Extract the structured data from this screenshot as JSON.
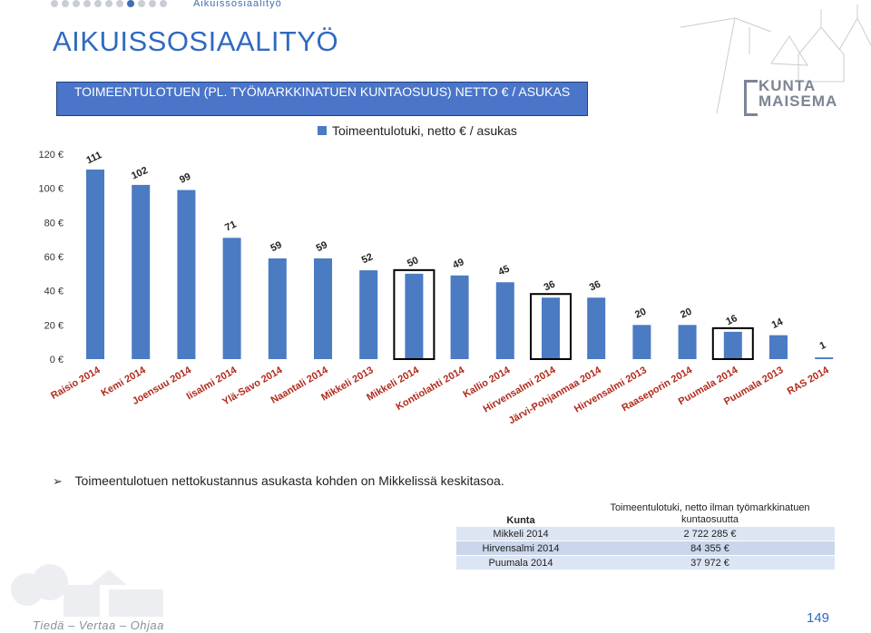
{
  "header": {
    "breadcrumb": "Aikuissosiaalityö",
    "nav_dots": [
      false,
      false,
      false,
      false,
      false,
      false,
      false,
      true,
      false,
      false,
      false
    ]
  },
  "page_title": "AIKUISSOSIAALITYÖ",
  "logo": {
    "line1": "KUNTA",
    "line2": "MAISEMA"
  },
  "chart_data": {
    "type": "bar",
    "title": "TOIMEENTULOTUEN (PL. TYÖMARKKINATUEN KUNTAOSUUS) NETTO € / ASUKAS",
    "legend_position": "top-right",
    "series": [
      {
        "name": "Toimeentulotuki, netto € / asukas",
        "color": "#4a7bc3",
        "values": [
          111,
          102,
          99,
          71,
          59,
          59,
          52,
          50,
          49,
          45,
          36,
          36,
          20,
          20,
          16,
          14,
          1
        ]
      }
    ],
    "categories": [
      "Raisio 2014",
      "Kemi 2014",
      "Joensuu 2014",
      "Iisalmi 2014",
      "Ylä-Savo 2014",
      "Naantali 2014",
      "Mikkeli 2013",
      "Mikkeli 2014",
      "Kontiolahti 2014",
      "Kallio 2014",
      "Hirvensalmi 2014",
      "Järvi-Pohjanmaa 2014",
      "Hirvensalmi 2013",
      "Raaseporin 2014",
      "Puumala 2014",
      "Puumala 2013",
      "RAS 2014"
    ],
    "highlighted": [
      "Mikkeli 2014",
      "Hirvensalmi 2014",
      "Puumala 2014"
    ],
    "yticks": [
      "0 €",
      "20 €",
      "40 €",
      "60 €",
      "80 €",
      "100 €",
      "120 €"
    ],
    "ylim": [
      0,
      120
    ],
    "grid": false
  },
  "bullet_text": "Toimeentulotuen nettokustannus asukasta kohden on Mikkelissä keskitasoa.",
  "table": {
    "headers": [
      "Kunta",
      "Toimeentulotuki, netto ilman työmarkkinatuen kuntaosuutta"
    ],
    "rows": [
      [
        "Mikkeli 2014",
        "2 722 285 €"
      ],
      [
        "Hirvensalmi 2014",
        "84 355 €"
      ],
      [
        "Puumala 2014",
        "37 972 €"
      ]
    ]
  },
  "footer": {
    "tagline": "Tiedä – Vertaa – Ohjaa",
    "page_number": "149"
  }
}
